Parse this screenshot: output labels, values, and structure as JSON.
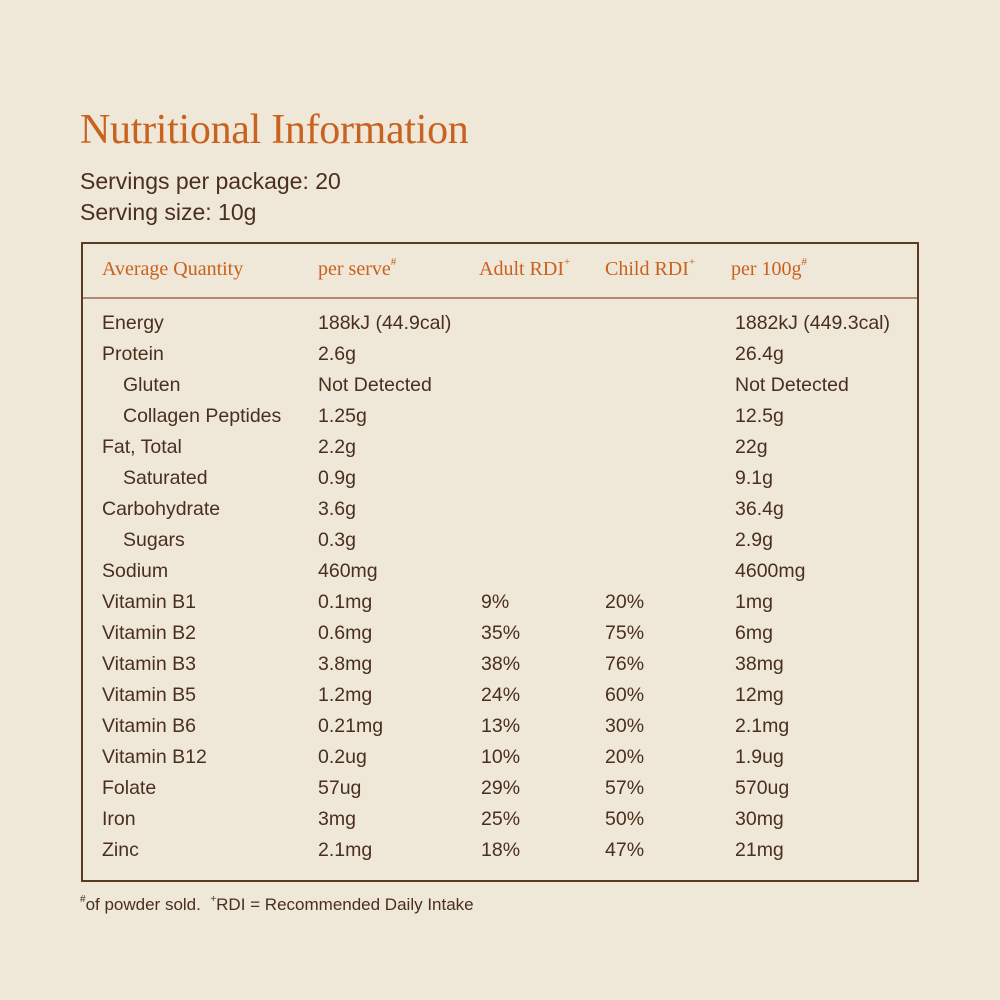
{
  "title": "Nutritional Information",
  "servings_per_package": "Servings per package: 20",
  "serving_size": "Serving size: 10g",
  "table": {
    "headers": [
      {
        "label": "Average Quantity",
        "mark": ""
      },
      {
        "label": "per serve",
        "mark": "#"
      },
      {
        "label": "Adult RDI",
        "mark": "+"
      },
      {
        "label": "Child RDI",
        "mark": "+"
      },
      {
        "label": "per 100g",
        "mark": "#"
      }
    ],
    "rows": [
      {
        "name": "Energy",
        "indent": false,
        "per_serve": "188kJ (44.9cal)",
        "adult_rdi": "",
        "child_rdi": "",
        "per_100g": "1882kJ (449.3cal)"
      },
      {
        "name": "Protein",
        "indent": false,
        "per_serve": "2.6g",
        "adult_rdi": "",
        "child_rdi": "",
        "per_100g": "26.4g"
      },
      {
        "name": "Gluten",
        "indent": true,
        "per_serve": "Not Detected",
        "adult_rdi": "",
        "child_rdi": "",
        "per_100g": "Not Detected"
      },
      {
        "name": "Collagen Peptides",
        "indent": true,
        "per_serve": "1.25g",
        "adult_rdi": "",
        "child_rdi": "",
        "per_100g": "12.5g"
      },
      {
        "name": "Fat, Total",
        "indent": false,
        "per_serve": "2.2g",
        "adult_rdi": "",
        "child_rdi": "",
        "per_100g": "22g"
      },
      {
        "name": "Saturated",
        "indent": true,
        "per_serve": "0.9g",
        "adult_rdi": "",
        "child_rdi": "",
        "per_100g": "9.1g"
      },
      {
        "name": "Carbohydrate",
        "indent": false,
        "per_serve": "3.6g",
        "adult_rdi": "",
        "child_rdi": "",
        "per_100g": "36.4g"
      },
      {
        "name": "Sugars",
        "indent": true,
        "per_serve": "0.3g",
        "adult_rdi": "",
        "child_rdi": "",
        "per_100g": "2.9g"
      },
      {
        "name": "Sodium",
        "indent": false,
        "per_serve": "460mg",
        "adult_rdi": "",
        "child_rdi": "",
        "per_100g": "4600mg"
      },
      {
        "name": "Vitamin B1",
        "indent": false,
        "per_serve": "0.1mg",
        "adult_rdi": "9%",
        "child_rdi": "20%",
        "per_100g": "1mg"
      },
      {
        "name": "Vitamin B2",
        "indent": false,
        "per_serve": "0.6mg",
        "adult_rdi": "35%",
        "child_rdi": "75%",
        "per_100g": "6mg"
      },
      {
        "name": "Vitamin B3",
        "indent": false,
        "per_serve": "3.8mg",
        "adult_rdi": "38%",
        "child_rdi": "76%",
        "per_100g": "38mg"
      },
      {
        "name": "Vitamin B5",
        "indent": false,
        "per_serve": "1.2mg",
        "adult_rdi": "24%",
        "child_rdi": "60%",
        "per_100g": "12mg"
      },
      {
        "name": "Vitamin B6",
        "indent": false,
        "per_serve": "0.21mg",
        "adult_rdi": "13%",
        "child_rdi": "30%",
        "per_100g": "2.1mg"
      },
      {
        "name": "Vitamin B12",
        "indent": false,
        "per_serve": "0.2ug",
        "adult_rdi": "10%",
        "child_rdi": "20%",
        "per_100g": "1.9ug"
      },
      {
        "name": "Folate",
        "indent": false,
        "per_serve": "57ug",
        "adult_rdi": "29%",
        "child_rdi": "57%",
        "per_100g": "570ug"
      },
      {
        "name": "Iron",
        "indent": false,
        "per_serve": "3mg",
        "adult_rdi": "25%",
        "child_rdi": "50%",
        "per_100g": "30mg"
      },
      {
        "name": "Zinc",
        "indent": false,
        "per_serve": "2.1mg",
        "adult_rdi": "18%",
        "child_rdi": "47%",
        "per_100g": "21mg"
      }
    ]
  },
  "footnote": {
    "part1_mark": "#",
    "part1_text": "of powder sold.",
    "part2_mark": "+",
    "part2_text": "RDI = Recommended Daily Intake"
  },
  "colors": {
    "background": "#EFE7D8",
    "accent": "#C8621E",
    "text": "#4A2F1E",
    "border": "#5A3A24"
  }
}
